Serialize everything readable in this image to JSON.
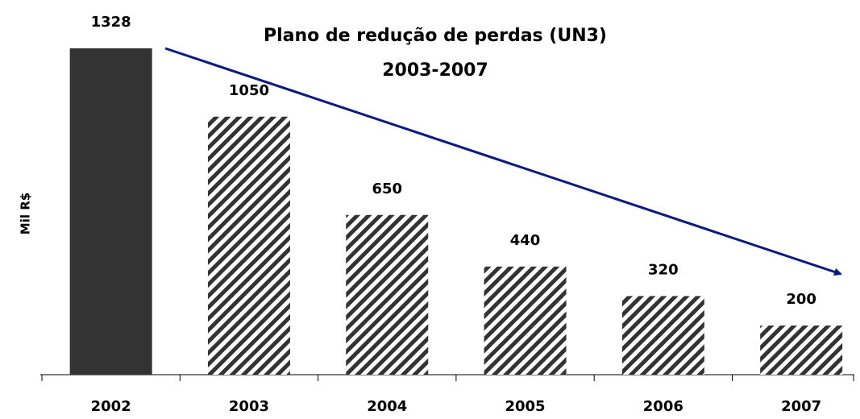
{
  "chart_data": {
    "type": "bar",
    "title": "Plano de redução de perdas (UN3)",
    "subtitle": "2003-2007",
    "y_label": "Mil R$",
    "categories": [
      "2002",
      "2003",
      "2004",
      "2005",
      "2006",
      "2007"
    ],
    "values": [
      1328,
      1050,
      650,
      440,
      320,
      200
    ],
    "color": "#333333",
    "hatched": [
      false,
      true,
      true,
      true,
      true,
      true
    ]
  }
}
